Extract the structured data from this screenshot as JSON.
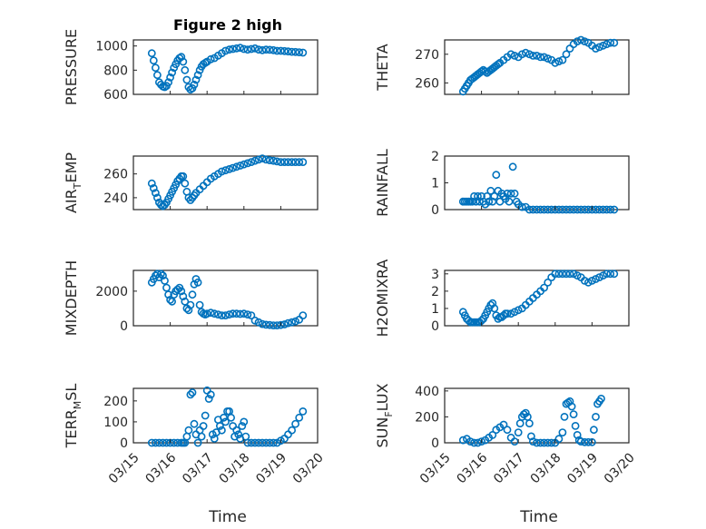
{
  "title": "Figure 2 high",
  "x_axis_label": "Time",
  "marker_color": "#0072BD",
  "chart_data": [
    {
      "name": "pressure",
      "type": "scatter",
      "ylabel": "PRESSURE",
      "ylim": [
        600,
        1050
      ],
      "yticks": [
        600,
        800,
        1000
      ],
      "xlim": [
        0,
        5
      ],
      "xticks": [
        0,
        1,
        2,
        3,
        4,
        5
      ],
      "xticklabels": [
        "03/15",
        "03/16",
        "03/17",
        "03/18",
        "03/19",
        "03/20"
      ],
      "x": [
        0.5,
        0.55,
        0.6,
        0.65,
        0.7,
        0.75,
        0.8,
        0.85,
        0.9,
        0.95,
        1.0,
        1.05,
        1.1,
        1.15,
        1.2,
        1.25,
        1.3,
        1.35,
        1.4,
        1.45,
        1.5,
        1.55,
        1.6,
        1.65,
        1.7,
        1.75,
        1.8,
        1.85,
        1.9,
        1.95,
        2.0,
        2.1,
        2.2,
        2.3,
        2.4,
        2.5,
        2.6,
        2.7,
        2.8,
        2.9,
        3.0,
        3.1,
        3.2,
        3.3,
        3.4,
        3.5,
        3.6,
        3.7,
        3.8,
        3.9,
        4.0,
        4.1,
        4.2,
        4.3,
        4.4,
        4.5,
        4.6
      ],
      "y": [
        940,
        880,
        820,
        760,
        700,
        680,
        665,
        660,
        670,
        700,
        740,
        780,
        820,
        850,
        880,
        900,
        910,
        870,
        800,
        720,
        660,
        640,
        650,
        680,
        720,
        760,
        800,
        830,
        850,
        860,
        870,
        890,
        900,
        920,
        940,
        960,
        970,
        975,
        980,
        985,
        975,
        970,
        975,
        980,
        970,
        965,
        970,
        968,
        965,
        960,
        960,
        958,
        955,
        952,
        950,
        948,
        945
      ]
    },
    {
      "name": "theta",
      "type": "scatter",
      "ylabel": "THETA",
      "ylim": [
        256,
        275
      ],
      "yticks": [
        260,
        270
      ],
      "xlim": [
        0,
        5
      ],
      "xticks": [
        0,
        1,
        2,
        3,
        4,
        5
      ],
      "xticklabels": [
        "03/15",
        "03/16",
        "03/17",
        "03/18",
        "03/19",
        "03/20"
      ],
      "x": [
        0.5,
        0.55,
        0.6,
        0.65,
        0.7,
        0.75,
        0.8,
        0.85,
        0.9,
        0.95,
        1.0,
        1.05,
        1.1,
        1.15,
        1.2,
        1.25,
        1.3,
        1.35,
        1.4,
        1.45,
        1.5,
        1.6,
        1.7,
        1.8,
        1.9,
        2.0,
        2.1,
        2.2,
        2.3,
        2.4,
        2.5,
        2.6,
        2.7,
        2.8,
        2.9,
        3.0,
        3.1,
        3.2,
        3.3,
        3.4,
        3.5,
        3.6,
        3.7,
        3.8,
        3.9,
        4.0,
        4.1,
        4.2,
        4.3,
        4.4,
        4.5,
        4.6
      ],
      "y": [
        257,
        258,
        259,
        260,
        261,
        261.5,
        262,
        262.5,
        263,
        263.5,
        264,
        264.5,
        264,
        263.5,
        264,
        264.5,
        265,
        265.5,
        266,
        266.5,
        267,
        268,
        269,
        270,
        269.5,
        269,
        270,
        270.5,
        270,
        269.5,
        269.5,
        269,
        269,
        268.5,
        268,
        267,
        267.5,
        268,
        270,
        272,
        273.5,
        274.5,
        275,
        274.5,
        274,
        273,
        272,
        272.5,
        273,
        273.5,
        274,
        274
      ]
    },
    {
      "name": "air_temp",
      "type": "scatter",
      "ylabel": "AIR_TEMP",
      "ylim": [
        230,
        275
      ],
      "yticks": [
        240,
        260
      ],
      "xlim": [
        0,
        5
      ],
      "xticks": [
        0,
        1,
        2,
        3,
        4,
        5
      ],
      "xticklabels": [
        "03/15",
        "03/16",
        "03/17",
        "03/18",
        "03/19",
        "03/20"
      ],
      "x": [
        0.5,
        0.55,
        0.6,
        0.65,
        0.7,
        0.75,
        0.8,
        0.85,
        0.9,
        0.95,
        1.0,
        1.05,
        1.1,
        1.15,
        1.2,
        1.25,
        1.3,
        1.35,
        1.4,
        1.45,
        1.5,
        1.55,
        1.6,
        1.65,
        1.7,
        1.8,
        1.9,
        2.0,
        2.1,
        2.2,
        2.3,
        2.4,
        2.5,
        2.6,
        2.7,
        2.8,
        2.9,
        3.0,
        3.1,
        3.2,
        3.3,
        3.4,
        3.5,
        3.6,
        3.7,
        3.8,
        3.9,
        4.0,
        4.1,
        4.2,
        4.3,
        4.4,
        4.5,
        4.6
      ],
      "y": [
        252,
        248,
        244,
        240,
        236,
        234,
        233,
        234,
        236,
        239,
        242,
        245,
        248,
        251,
        254,
        256,
        258,
        258,
        252,
        245,
        240,
        238,
        240,
        242,
        244,
        247,
        250,
        253,
        256,
        258,
        260,
        262,
        263,
        264,
        265,
        266,
        267,
        268,
        269,
        270,
        271,
        272,
        273,
        272,
        271.5,
        271,
        270.5,
        270,
        270,
        270,
        270,
        270,
        270,
        270
      ]
    },
    {
      "name": "rainfall",
      "type": "scatter",
      "ylabel": "RAINFALL",
      "ylim": [
        0,
        2
      ],
      "yticks": [
        0,
        1,
        2
      ],
      "xlim": [
        0,
        5
      ],
      "xticks": [
        0,
        1,
        2,
        3,
        4,
        5
      ],
      "xticklabels": [
        "03/15",
        "03/16",
        "03/17",
        "03/18",
        "03/19",
        "03/20"
      ],
      "x": [
        0.5,
        0.55,
        0.6,
        0.65,
        0.7,
        0.75,
        0.8,
        0.85,
        0.9,
        0.95,
        1.0,
        1.05,
        1.1,
        1.15,
        1.2,
        1.25,
        1.3,
        1.35,
        1.4,
        1.45,
        1.5,
        1.55,
        1.6,
        1.65,
        1.7,
        1.75,
        1.8,
        1.85,
        1.9,
        1.95,
        2.0,
        2.1,
        2.2,
        2.3,
        2.4,
        2.5,
        2.6,
        2.7,
        2.8,
        2.9,
        3.0,
        3.1,
        3.2,
        3.3,
        3.4,
        3.5,
        3.6,
        3.7,
        3.8,
        3.9,
        4.0,
        4.1,
        4.2,
        4.3,
        4.4,
        4.5,
        4.6
      ],
      "y": [
        0.3,
        0.3,
        0.3,
        0.3,
        0.3,
        0.3,
        0.5,
        0.3,
        0.5,
        0.3,
        0.5,
        0.3,
        0.2,
        0.5,
        0.3,
        0.7,
        0.3,
        0.5,
        1.3,
        0.7,
        0.3,
        0.6,
        0.5,
        0.4,
        0.6,
        0.3,
        0.6,
        1.6,
        0.6,
        0.3,
        0.2,
        0.1,
        0.1,
        0.0,
        0.0,
        0.0,
        0.0,
        0.0,
        0.0,
        0.0,
        0.0,
        0.0,
        0.0,
        0.0,
        0.0,
        0.0,
        0.0,
        0.0,
        0.0,
        0.0,
        0.0,
        0.0,
        0.0,
        0.0,
        0.0,
        0.0,
        0.0
      ]
    },
    {
      "name": "mixdepth",
      "type": "scatter",
      "ylabel": "MIXDEPTH",
      "ylim": [
        0,
        3200
      ],
      "yticks": [
        0,
        2000
      ],
      "xlim": [
        0,
        5
      ],
      "xticks": [
        0,
        1,
        2,
        3,
        4,
        5
      ],
      "xticklabels": [
        "03/15",
        "03/16",
        "03/17",
        "03/18",
        "03/19",
        "03/20"
      ],
      "x": [
        0.5,
        0.55,
        0.6,
        0.65,
        0.7,
        0.75,
        0.8,
        0.85,
        0.9,
        0.95,
        1.0,
        1.05,
        1.1,
        1.15,
        1.2,
        1.25,
        1.3,
        1.35,
        1.4,
        1.45,
        1.5,
        1.55,
        1.6,
        1.65,
        1.7,
        1.75,
        1.8,
        1.85,
        1.9,
        1.95,
        2.0,
        2.1,
        2.2,
        2.3,
        2.4,
        2.5,
        2.6,
        2.7,
        2.8,
        2.9,
        3.0,
        3.1,
        3.2,
        3.3,
        3.4,
        3.5,
        3.6,
        3.7,
        3.8,
        3.9,
        4.0,
        4.1,
        4.2,
        4.3,
        4.4,
        4.5,
        4.6
      ],
      "y": [
        2500,
        2700,
        2900,
        3000,
        2800,
        3000,
        2900,
        2600,
        2200,
        1800,
        1500,
        1400,
        1800,
        2000,
        2100,
        2200,
        2000,
        1700,
        1400,
        1000,
        900,
        1200,
        1800,
        2400,
        2700,
        2500,
        1200,
        800,
        700,
        650,
        700,
        750,
        700,
        650,
        600,
        600,
        650,
        700,
        700,
        680,
        700,
        650,
        600,
        300,
        200,
        100,
        60,
        40,
        20,
        20,
        40,
        80,
        150,
        200,
        250,
        350,
        600
      ]
    },
    {
      "name": "h2omixra",
      "type": "scatter",
      "ylabel": "H2OMIXRA",
      "ylim": [
        0,
        3.2
      ],
      "yticks": [
        0,
        1,
        2,
        3
      ],
      "xlim": [
        0,
        5
      ],
      "xticks": [
        0,
        1,
        2,
        3,
        4,
        5
      ],
      "xticklabels": [
        "03/15",
        "03/16",
        "03/17",
        "03/18",
        "03/19",
        "03/20"
      ],
      "x": [
        0.5,
        0.55,
        0.6,
        0.65,
        0.7,
        0.75,
        0.8,
        0.85,
        0.9,
        0.95,
        1.0,
        1.05,
        1.1,
        1.15,
        1.2,
        1.25,
        1.3,
        1.35,
        1.4,
        1.45,
        1.5,
        1.55,
        1.6,
        1.65,
        1.7,
        1.8,
        1.9,
        2.0,
        2.1,
        2.2,
        2.3,
        2.4,
        2.5,
        2.6,
        2.7,
        2.8,
        2.9,
        3.0,
        3.1,
        3.2,
        3.3,
        3.4,
        3.5,
        3.6,
        3.7,
        3.8,
        3.9,
        4.0,
        4.1,
        4.2,
        4.3,
        4.4,
        4.5,
        4.6
      ],
      "y": [
        0.8,
        0.6,
        0.4,
        0.3,
        0.2,
        0.2,
        0.2,
        0.2,
        0.2,
        0.2,
        0.3,
        0.4,
        0.6,
        0.8,
        1.0,
        1.2,
        1.3,
        1.0,
        0.6,
        0.4,
        0.5,
        0.5,
        0.6,
        0.7,
        0.7,
        0.7,
        0.8,
        0.9,
        1.0,
        1.2,
        1.4,
        1.6,
        1.8,
        2.0,
        2.2,
        2.5,
        2.8,
        3.0,
        3.0,
        3.0,
        3.0,
        3.0,
        3.0,
        2.9,
        2.8,
        2.6,
        2.5,
        2.6,
        2.7,
        2.8,
        2.9,
        3.0,
        3.0,
        3.0
      ]
    },
    {
      "name": "terr_msl",
      "type": "scatter",
      "ylabel": "TERR_MSL",
      "ylim": [
        0,
        260
      ],
      "yticks": [
        0,
        100,
        200
      ],
      "xlim": [
        0,
        5
      ],
      "xticks": [
        0,
        1,
        2,
        3,
        4,
        5
      ],
      "xticklabels": [
        "03/15",
        "03/16",
        "03/17",
        "03/18",
        "03/19",
        "03/20"
      ],
      "x": [
        0.5,
        0.6,
        0.7,
        0.8,
        0.9,
        1.0,
        1.1,
        1.2,
        1.3,
        1.35,
        1.4,
        1.45,
        1.5,
        1.55,
        1.6,
        1.65,
        1.7,
        1.75,
        1.8,
        1.85,
        1.9,
        1.95,
        2.0,
        2.05,
        2.1,
        2.15,
        2.2,
        2.25,
        2.3,
        2.35,
        2.4,
        2.45,
        2.5,
        2.55,
        2.6,
        2.65,
        2.7,
        2.75,
        2.8,
        2.85,
        2.9,
        2.95,
        3.0,
        3.05,
        3.1,
        3.2,
        3.3,
        3.4,
        3.5,
        3.6,
        3.7,
        3.8,
        3.9,
        4.0,
        4.1,
        4.2,
        4.3,
        4.4,
        4.5,
        4.6
      ],
      "y": [
        0,
        0,
        0,
        0,
        0,
        0,
        0,
        0,
        0,
        0,
        0,
        30,
        60,
        230,
        240,
        90,
        40,
        0,
        60,
        30,
        80,
        130,
        250,
        210,
        230,
        40,
        20,
        50,
        110,
        80,
        60,
        120,
        100,
        150,
        150,
        120,
        80,
        30,
        60,
        40,
        20,
        80,
        100,
        30,
        0,
        0,
        0,
        0,
        0,
        0,
        0,
        0,
        0,
        10,
        20,
        40,
        60,
        90,
        120,
        150
      ]
    },
    {
      "name": "sun_flux",
      "type": "scatter",
      "ylabel": "SUN_FLUX",
      "ylim": [
        0,
        420
      ],
      "yticks": [
        0,
        200,
        400
      ],
      "xlim": [
        0,
        5
      ],
      "xticks": [
        0,
        1,
        2,
        3,
        4,
        5
      ],
      "xticklabels": [
        "03/15",
        "03/16",
        "03/17",
        "03/18",
        "03/19",
        "03/20"
      ],
      "x": [
        0.5,
        0.6,
        0.7,
        0.8,
        0.9,
        1.0,
        1.1,
        1.2,
        1.3,
        1.4,
        1.5,
        1.6,
        1.7,
        1.8,
        1.9,
        2.0,
        2.05,
        2.1,
        2.15,
        2.2,
        2.25,
        2.3,
        2.35,
        2.4,
        2.5,
        2.6,
        2.7,
        2.8,
        2.9,
        3.0,
        3.1,
        3.2,
        3.25,
        3.3,
        3.35,
        3.4,
        3.45,
        3.5,
        3.55,
        3.6,
        3.65,
        3.7,
        3.8,
        3.9,
        4.0,
        4.05,
        4.1,
        4.15,
        4.2,
        4.25
      ],
      "y": [
        20,
        30,
        10,
        0,
        0,
        10,
        20,
        40,
        60,
        100,
        120,
        140,
        100,
        40,
        10,
        80,
        150,
        200,
        220,
        230,
        200,
        150,
        50,
        10,
        0,
        0,
        0,
        0,
        0,
        0,
        30,
        80,
        200,
        300,
        310,
        320,
        280,
        220,
        130,
        60,
        20,
        10,
        5,
        5,
        5,
        100,
        200,
        300,
        320,
        340
      ]
    }
  ]
}
